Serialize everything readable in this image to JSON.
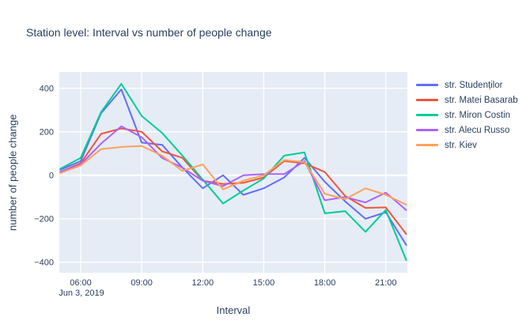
{
  "title": "Station level: Interval vs number of people change",
  "colors": {
    "paper_bg": "#ffffff",
    "plot_bg": "#e5ecf6",
    "grid": "#ffffff",
    "text": "#2a3f5f"
  },
  "chart_data": {
    "type": "line",
    "title": "Station level: Interval vs number of people change",
    "xlabel": "Interval",
    "ylabel": "number of people change",
    "x_date_annotation": "Jun 3, 2019",
    "x": [
      "05:00",
      "06:00",
      "07:00",
      "08:00",
      "09:00",
      "10:00",
      "11:00",
      "12:00",
      "13:00",
      "14:00",
      "15:00",
      "16:00",
      "17:00",
      "18:00",
      "19:00",
      "20:00",
      "21:00",
      "22:00"
    ],
    "x_hours": [
      5,
      6,
      7,
      8,
      9,
      10,
      11,
      12,
      13,
      14,
      15,
      16,
      17,
      18,
      19,
      20,
      21,
      22
    ],
    "series": [
      {
        "name": "str. Studenților",
        "color": "#636efa",
        "values": [
          25,
          65,
          285,
          395,
          150,
          140,
          35,
          -60,
          0,
          -90,
          -60,
          -10,
          80,
          -30,
          -120,
          -200,
          -170,
          -320
        ]
      },
      {
        "name": "str. Matei Basarab",
        "color": "#ef553b",
        "values": [
          15,
          55,
          190,
          215,
          200,
          110,
          80,
          -25,
          -40,
          -35,
          -10,
          65,
          55,
          15,
          -95,
          -150,
          -148,
          -270
        ]
      },
      {
        "name": "str. Miron Costin",
        "color": "#00cc96",
        "values": [
          30,
          80,
          290,
          420,
          273,
          195,
          90,
          -20,
          -130,
          -70,
          -15,
          90,
          105,
          -175,
          -165,
          -260,
          -160,
          -390
        ]
      },
      {
        "name": "str. Alecu Russo",
        "color": "#ab63fa",
        "values": [
          15,
          50,
          145,
          225,
          175,
          80,
          35,
          -25,
          -50,
          0,
          5,
          5,
          65,
          -115,
          -100,
          -125,
          -80,
          -160
        ]
      },
      {
        "name": "str. Kiev",
        "color": "#ffa15a",
        "values": [
          10,
          45,
          120,
          130,
          135,
          90,
          20,
          50,
          -65,
          -25,
          0,
          70,
          60,
          -85,
          -110,
          -60,
          -90,
          -135
        ]
      }
    ],
    "x_ticks": [
      {
        "hour": 6,
        "label": "06:00"
      },
      {
        "hour": 9,
        "label": "09:00"
      },
      {
        "hour": 12,
        "label": "12:00"
      },
      {
        "hour": 15,
        "label": "15:00"
      },
      {
        "hour": 18,
        "label": "18:00"
      },
      {
        "hour": 21,
        "label": "21:00"
      }
    ],
    "y_ticks": [
      {
        "value": -400,
        "label": "−400"
      },
      {
        "value": -200,
        "label": "−200"
      },
      {
        "value": 0,
        "label": "0"
      },
      {
        "value": 200,
        "label": "200"
      },
      {
        "value": 400,
        "label": "400"
      }
    ],
    "xlim_hours": [
      4.95,
      22.06
    ],
    "ylim": [
      -448,
      475
    ],
    "grid": true,
    "legend_position": "right"
  }
}
